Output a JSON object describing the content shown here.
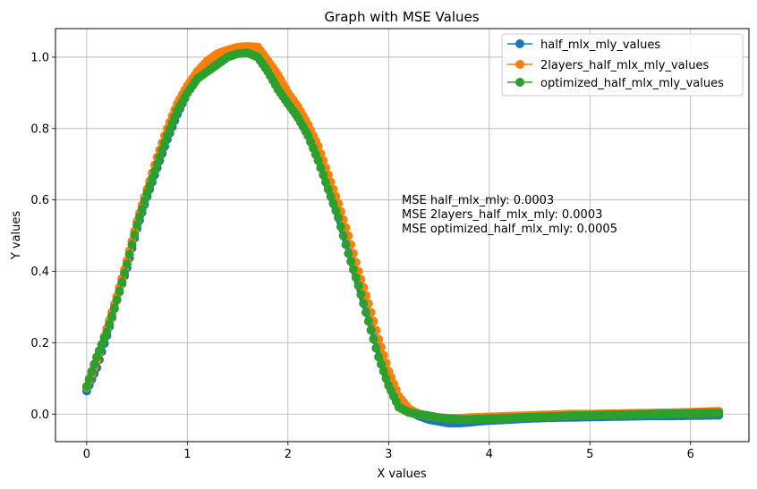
{
  "chart_data": {
    "type": "line",
    "title": "Graph with MSE Values",
    "xlabel": "X values",
    "ylabel": "Y values",
    "xlim": [
      -0.31,
      6.58
    ],
    "ylim": [
      -0.077,
      1.08
    ],
    "xticks": [
      0,
      1,
      2,
      3,
      4,
      5,
      6
    ],
    "yticks": [
      0.0,
      0.2,
      0.4,
      0.6,
      0.8,
      1.0
    ],
    "xtick_labels": [
      "0",
      "1",
      "2",
      "3",
      "4",
      "5",
      "6"
    ],
    "ytick_labels": [
      "0.0",
      "0.2",
      "0.4",
      "0.6",
      "0.8",
      "1.0"
    ],
    "grid": true,
    "legend_position": "top-right",
    "markers": "circle",
    "series": [
      {
        "name": "half_mlx_mly_values",
        "color": "#1f77b4",
        "x": [
          0.0,
          0.1,
          0.2,
          0.3,
          0.4,
          0.5,
          0.6,
          0.7,
          0.8,
          0.9,
          1.0,
          1.1,
          1.2,
          1.3,
          1.4,
          1.5,
          1.6,
          1.7,
          1.8,
          1.9,
          2.0,
          2.1,
          2.2,
          2.3,
          2.4,
          2.5,
          2.6,
          2.7,
          2.8,
          2.9,
          3.0,
          3.1,
          3.2,
          3.3,
          3.4,
          3.5,
          3.6,
          3.7,
          3.8,
          3.9,
          4.0,
          4.2,
          4.4,
          4.6,
          4.8,
          5.0,
          5.2,
          5.4,
          5.6,
          5.8,
          6.0,
          6.28
        ],
        "y": [
          0.065,
          0.13,
          0.22,
          0.32,
          0.41,
          0.52,
          0.61,
          0.69,
          0.77,
          0.84,
          0.9,
          0.94,
          0.97,
          0.99,
          1.005,
          1.015,
          1.02,
          1.01,
          0.97,
          0.92,
          0.88,
          0.84,
          0.79,
          0.73,
          0.64,
          0.56,
          0.47,
          0.37,
          0.28,
          0.18,
          0.09,
          0.04,
          0.01,
          -0.005,
          -0.015,
          -0.02,
          -0.025,
          -0.025,
          -0.023,
          -0.02,
          -0.018,
          -0.015,
          -0.012,
          -0.01,
          -0.009,
          -0.008,
          -0.007,
          -0.006,
          -0.005,
          -0.005,
          -0.004,
          -0.003
        ]
      },
      {
        "name": "2layers_half_mlx_mly_values",
        "color": "#ff7f0e",
        "x": [
          0.0,
          0.1,
          0.2,
          0.3,
          0.4,
          0.5,
          0.6,
          0.7,
          0.8,
          0.9,
          1.0,
          1.1,
          1.2,
          1.3,
          1.4,
          1.5,
          1.6,
          1.7,
          1.8,
          1.9,
          2.0,
          2.1,
          2.2,
          2.3,
          2.4,
          2.5,
          2.6,
          2.7,
          2.8,
          2.9,
          3.0,
          3.1,
          3.2,
          3.3,
          3.4,
          3.5,
          3.6,
          3.7,
          3.8,
          3.9,
          4.0,
          4.2,
          4.4,
          4.6,
          4.8,
          5.0,
          5.2,
          5.4,
          5.6,
          5.8,
          6.0,
          6.28
        ],
        "y": [
          0.075,
          0.15,
          0.24,
          0.33,
          0.43,
          0.54,
          0.63,
          0.72,
          0.8,
          0.87,
          0.92,
          0.96,
          0.99,
          1.01,
          1.02,
          1.028,
          1.03,
          1.028,
          0.99,
          0.95,
          0.9,
          0.86,
          0.81,
          0.75,
          0.67,
          0.59,
          0.5,
          0.4,
          0.31,
          0.21,
          0.12,
          0.05,
          0.015,
          0.0,
          -0.005,
          -0.01,
          -0.012,
          -0.012,
          -0.01,
          -0.009,
          -0.008,
          -0.006,
          -0.004,
          -0.002,
          0.0,
          0.0,
          0.001,
          0.002,
          0.003,
          0.004,
          0.005,
          0.008
        ]
      },
      {
        "name": "optimized_half_mlx_mly_values",
        "color": "#2ca02c",
        "x": [
          0.0,
          0.1,
          0.2,
          0.3,
          0.4,
          0.5,
          0.6,
          0.7,
          0.8,
          0.9,
          1.0,
          1.1,
          1.2,
          1.3,
          1.4,
          1.5,
          1.6,
          1.7,
          1.8,
          1.9,
          2.0,
          2.1,
          2.2,
          2.3,
          2.4,
          2.5,
          2.6,
          2.7,
          2.8,
          2.9,
          3.0,
          3.1,
          3.2,
          3.3,
          3.4,
          3.5,
          3.6,
          3.7,
          3.8,
          3.9,
          4.0,
          4.2,
          4.4,
          4.6,
          4.8,
          5.0,
          5.2,
          5.4,
          5.6,
          5.8,
          6.0,
          6.28
        ],
        "y": [
          0.078,
          0.16,
          0.23,
          0.32,
          0.42,
          0.53,
          0.62,
          0.7,
          0.78,
          0.85,
          0.9,
          0.94,
          0.96,
          0.98,
          1.0,
          1.01,
          1.012,
          1.0,
          0.96,
          0.91,
          0.87,
          0.83,
          0.78,
          0.71,
          0.63,
          0.55,
          0.45,
          0.36,
          0.26,
          0.16,
          0.08,
          0.02,
          0.005,
          0.0,
          -0.005,
          -0.01,
          -0.013,
          -0.015,
          -0.015,
          -0.014,
          -0.013,
          -0.011,
          -0.009,
          -0.007,
          -0.005,
          -0.003,
          -0.002,
          -0.001,
          0.0,
          0.001,
          0.002,
          0.004
        ]
      }
    ],
    "annotations": [
      "MSE half_mlx_mly: 0.0003",
      "MSE 2layers_half_mlx_mly: 0.0003",
      "MSE optimized_half_mlx_mly: 0.0005"
    ]
  }
}
